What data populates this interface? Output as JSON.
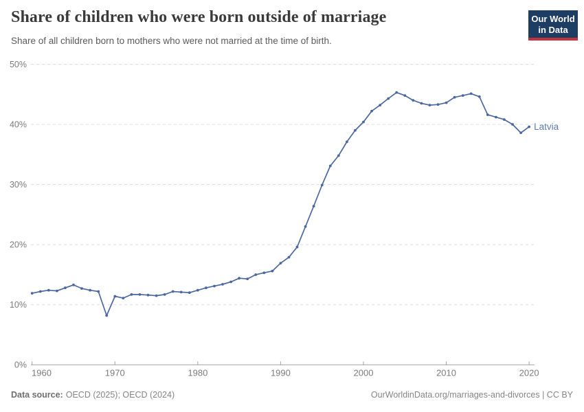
{
  "header": {
    "title": "Share of children who were born outside of marriage",
    "subtitle": "Share of all children born to mothers who were not married at the time of birth."
  },
  "logo": {
    "line1": "Our World",
    "line2": "in Data",
    "bg_color": "#1d3d63",
    "stripe_color": "#c4323f"
  },
  "footer": {
    "source_label": "Data source:",
    "source_value": "OECD (2025); OECD (2024)",
    "right_text": "OurWorldinData.org/marriages-and-divorces | CC BY"
  },
  "chart_data": {
    "type": "line",
    "title": "Share of children who were born outside of marriage",
    "xlabel": "",
    "ylabel": "",
    "ylim": [
      0,
      50
    ],
    "yticks": [
      0,
      10,
      20,
      30,
      40,
      50
    ],
    "ytick_suffix": "%",
    "xticks": [
      1960,
      1970,
      1980,
      1990,
      2000,
      2010,
      2020
    ],
    "grid": "horizontal-dashed",
    "legend_position": "end-of-line-label",
    "colors": {
      "line": "#4a67a0",
      "entity_label": "#5c7ab5",
      "gridline": "#dcdcdc",
      "axis": "#a3a3a3",
      "tick_label": "#7b7b7b"
    },
    "x": [
      1960,
      1961,
      1962,
      1963,
      1964,
      1965,
      1966,
      1967,
      1968,
      1969,
      1970,
      1971,
      1972,
      1973,
      1974,
      1975,
      1976,
      1977,
      1978,
      1979,
      1980,
      1981,
      1982,
      1983,
      1984,
      1985,
      1986,
      1987,
      1988,
      1989,
      1990,
      1991,
      1992,
      1993,
      1994,
      1995,
      1996,
      1997,
      1998,
      1999,
      2000,
      2001,
      2002,
      2003,
      2004,
      2005,
      2006,
      2007,
      2008,
      2009,
      2010,
      2011,
      2012,
      2013,
      2014,
      2015,
      2016,
      2017,
      2018,
      2019,
      2020
    ],
    "series": [
      {
        "name": "Latvia",
        "values": [
          11.9,
          12.2,
          12.4,
          12.3,
          12.8,
          13.3,
          12.7,
          12.4,
          12.2,
          8.2,
          11.4,
          11.1,
          11.7,
          11.7,
          11.6,
          11.5,
          11.7,
          12.2,
          12.1,
          12.0,
          12.4,
          12.8,
          13.1,
          13.4,
          13.8,
          14.4,
          14.3,
          15.0,
          15.3,
          15.6,
          16.9,
          17.9,
          19.6,
          23.0,
          26.4,
          29.9,
          33.1,
          34.8,
          37.1,
          39.0,
          40.4,
          42.2,
          43.2,
          44.3,
          45.3,
          44.8,
          44.0,
          43.5,
          43.2,
          43.3,
          43.6,
          44.5,
          44.8,
          45.1,
          44.6,
          41.6,
          41.2,
          40.8,
          40.0,
          38.6,
          39.6
        ]
      }
    ]
  }
}
